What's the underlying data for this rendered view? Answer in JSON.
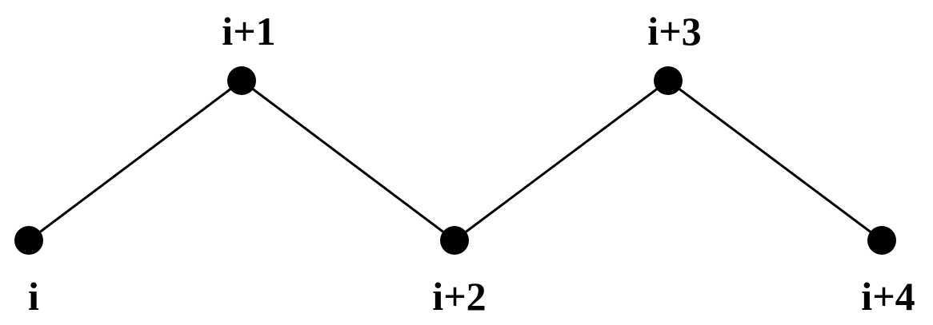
{
  "diagram": {
    "colors": {
      "line": "#000000",
      "node": "#000000",
      "label": "#000000",
      "background": "#ffffff"
    },
    "nodes": [
      {
        "id": "n0",
        "label": "i"
      },
      {
        "id": "n1",
        "label": "i+1"
      },
      {
        "id": "n2",
        "label": "i+2"
      },
      {
        "id": "n3",
        "label": "i+3"
      },
      {
        "id": "n4",
        "label": "i+4"
      }
    ],
    "edges": [
      {
        "from": "n0",
        "to": "n1"
      },
      {
        "from": "n1",
        "to": "n2"
      },
      {
        "from": "n2",
        "to": "n3"
      },
      {
        "from": "n3",
        "to": "n4"
      }
    ]
  }
}
